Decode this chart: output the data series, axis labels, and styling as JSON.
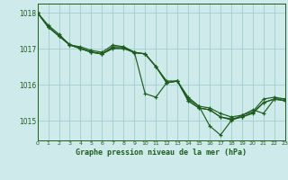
{
  "title": "Graphe pression niveau de la mer (hPa)",
  "background_color": "#ceeaea",
  "grid_color": "#9ecece",
  "line_color": "#1e5c1e",
  "x_ticks": [
    0,
    1,
    2,
    3,
    4,
    5,
    6,
    7,
    8,
    9,
    10,
    11,
    12,
    13,
    14,
    15,
    16,
    17,
    18,
    19,
    20,
    21,
    22,
    23
  ],
  "y_ticks": [
    1015,
    1016,
    1017,
    1018
  ],
  "ylim": [
    1014.45,
    1018.25
  ],
  "xlim": [
    0,
    23
  ],
  "series": [
    [
      1018.0,
      1017.65,
      1017.4,
      1017.1,
      1017.05,
      1016.95,
      1016.9,
      1017.1,
      1017.05,
      1016.9,
      1016.85,
      1016.5,
      1016.1,
      1016.1,
      1015.6,
      1015.4,
      1015.35,
      1015.2,
      1015.1,
      1015.15,
      1015.25,
      1015.6,
      1015.65,
      1015.6
    ],
    [
      1018.0,
      1017.6,
      1017.35,
      1017.1,
      1017.0,
      1016.9,
      1016.85,
      1017.0,
      1017.0,
      1016.9,
      1016.85,
      1016.5,
      1016.05,
      1016.1,
      1015.55,
      1015.35,
      1015.3,
      1015.1,
      1015.05,
      1015.1,
      1015.2,
      1015.5,
      1015.6,
      1015.55
    ],
    [
      1018.0,
      1017.6,
      1017.35,
      1017.1,
      1017.0,
      1016.9,
      1016.85,
      1017.05,
      1017.05,
      1016.9,
      1015.75,
      1015.65,
      1016.05,
      1016.1,
      1015.65,
      1015.4,
      1014.85,
      1014.6,
      1015.0,
      1015.15,
      1015.3,
      1015.2,
      1015.6,
      1015.6
    ],
    [
      1018.0,
      1017.6,
      1017.35,
      1017.12,
      1017.01,
      1016.91,
      1016.86,
      1017.02,
      1017.02,
      1016.88,
      1016.86,
      1016.5,
      1016.05,
      1016.1,
      1015.55,
      1015.35,
      1015.3,
      1015.1,
      1015.02,
      1015.1,
      1015.22,
      1015.5,
      1015.6,
      1015.55
    ]
  ]
}
